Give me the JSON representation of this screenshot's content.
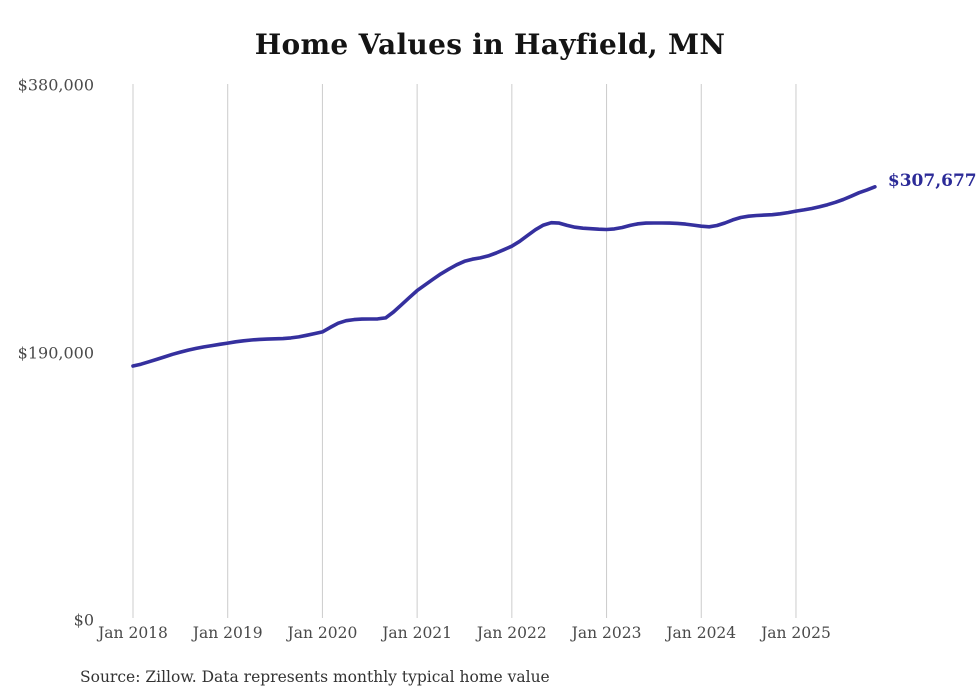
{
  "chart_data": {
    "type": "line",
    "title": "Home Values in Hayfield, MN",
    "source": "Source: Zillow. Data represents monthly typical home value",
    "end_label": "$307,677",
    "current_value": 307677,
    "x_start": "Jan 2018",
    "x_end": "Nov 2025",
    "ylim": [
      0,
      380000
    ],
    "grid": "vertical-only",
    "legend": "none",
    "y_ticks": [
      {
        "label": "$380,000",
        "value": 380000
      },
      {
        "label": "$190,000",
        "value": 190000
      },
      {
        "label": "$0",
        "value": 0
      }
    ],
    "x_ticks": [
      {
        "label": "Jan 2018",
        "month_index": 0
      },
      {
        "label": "Jan 2019",
        "month_index": 12
      },
      {
        "label": "Jan 2020",
        "month_index": 24
      },
      {
        "label": "Jan 2021",
        "month_index": 36
      },
      {
        "label": "Jan 2022",
        "month_index": 48
      },
      {
        "label": "Jan 2023",
        "month_index": 60
      },
      {
        "label": "Jan 2024",
        "month_index": 72
      },
      {
        "label": "Jan 2025",
        "month_index": 84
      }
    ],
    "series": [
      {
        "name": "Monthly typical home value",
        "values": [
          180400,
          181700,
          183400,
          185100,
          186900,
          188700,
          190300,
          191700,
          192900,
          194000,
          194900,
          195800,
          196700,
          197600,
          198300,
          198900,
          199300,
          199500,
          199700,
          199900,
          200400,
          201100,
          202200,
          203400,
          204600,
          207800,
          210800,
          212600,
          213400,
          213700,
          213800,
          213900,
          214600,
          218800,
          223800,
          228900,
          234000,
          238000,
          242000,
          245800,
          249200,
          252300,
          254800,
          256300,
          257200,
          258600,
          260700,
          263000,
          265500,
          269000,
          273200,
          277200,
          280500,
          282200,
          281900,
          280300,
          279000,
          278300,
          277900,
          277600,
          277400,
          277800,
          278800,
          280300,
          281400,
          281900,
          282000,
          282000,
          281900,
          281700,
          281200,
          280500,
          279700,
          279300,
          280200,
          282000,
          284200,
          285900,
          286800,
          287300,
          287600,
          287900,
          288500,
          289400,
          290400,
          291300,
          292300,
          293500,
          295000,
          296700,
          298700,
          301000,
          303500,
          305500,
          307677
        ]
      }
    ],
    "colors": {
      "line": "#35309E",
      "end_label": "#2B2A97",
      "grid": "#CCCCCC",
      "tick_text": "#4A4A4A",
      "title_text": "#141414",
      "source_text": "#333333"
    }
  }
}
